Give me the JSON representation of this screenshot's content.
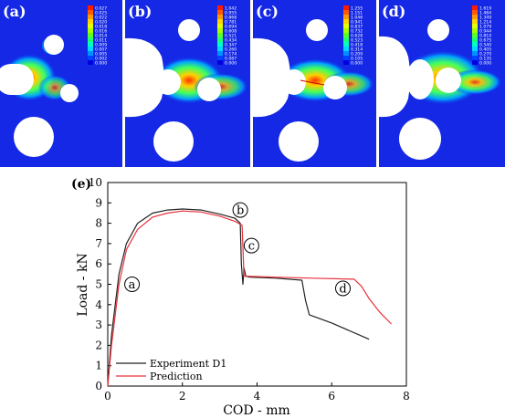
{
  "panels": [
    {
      "label": "(a)",
      "legend": [
        "0.027",
        "0.025",
        "0.022",
        "0.020",
        "0.018",
        "0.016",
        "0.014",
        "0.011",
        "0.009",
        "0.007",
        "0.005",
        "0.002",
        "0.000"
      ]
    },
    {
      "label": "(b)",
      "legend": [
        "1.042",
        "0.955",
        "0.868",
        "0.781",
        "0.694",
        "0.608",
        "0.521",
        "0.434",
        "0.347",
        "0.260",
        "0.174",
        "0.087",
        "0.000"
      ]
    },
    {
      "label": "(c)",
      "legend": [
        "1.255",
        "1.151",
        "1.046",
        "0.941",
        "0.837",
        "0.732",
        "0.628",
        "0.523",
        "0.418",
        "0.314",
        "0.209",
        "0.105",
        "0.000"
      ]
    },
    {
      "label": "(d)",
      "legend": [
        "1.619",
        "1.484",
        "1.349",
        "1.214",
        "1.079",
        "0.944",
        "0.810",
        "0.675",
        "0.540",
        "0.405",
        "0.270",
        "0.135",
        "0.000"
      ]
    }
  ],
  "legend_colors": [
    "#ff1a00",
    "#ff5a00",
    "#ff9a00",
    "#ffd500",
    "#e8ff00",
    "#a8ff00",
    "#5cff20",
    "#20ff70",
    "#00ffc0",
    "#00d8ff",
    "#0090ff",
    "#0044ff",
    "#0000e0"
  ],
  "colors": {
    "experiment": "#222222",
    "prediction": "#e8303a",
    "background_blue": "#1428e6"
  },
  "chart_data": {
    "panel_label": "(e)",
    "type": "line",
    "xlabel": "COD - mm",
    "ylabel": "Load - kN",
    "xlim": [
      0,
      8
    ],
    "ylim": [
      0,
      10
    ],
    "xticks": [
      "0",
      "2",
      "4",
      "6",
      "8"
    ],
    "yticks": [
      "0",
      "1",
      "2",
      "3",
      "4",
      "5",
      "6",
      "7",
      "8",
      "9",
      "10"
    ],
    "legend_location": "bottom-left",
    "series": [
      {
        "name": "Experiment D1",
        "x": [
          0,
          0.1,
          0.3,
          0.5,
          0.8,
          1.2,
          1.6,
          2.0,
          2.5,
          3.0,
          3.4,
          3.55,
          3.58,
          3.62,
          3.65,
          3.7,
          3.8,
          4.5,
          5.2,
          5.3,
          5.4,
          6.0,
          7.0
        ],
        "y": [
          0,
          2.5,
          5.5,
          7.0,
          8.0,
          8.5,
          8.65,
          8.7,
          8.65,
          8.45,
          8.25,
          8.0,
          6.0,
          5.0,
          5.8,
          5.4,
          5.35,
          5.3,
          5.2,
          4.2,
          3.5,
          3.1,
          2.3
        ]
      },
      {
        "name": "Prediction",
        "x": [
          0,
          0.1,
          0.3,
          0.5,
          0.8,
          1.2,
          1.6,
          2.0,
          2.5,
          3.0,
          3.4,
          3.6,
          3.65,
          3.7,
          4.5,
          5.5,
          6.6,
          6.8,
          7.0,
          7.3,
          7.6
        ],
        "y": [
          0,
          2.0,
          5.0,
          6.7,
          7.7,
          8.3,
          8.5,
          8.6,
          8.55,
          8.35,
          8.1,
          7.9,
          5.4,
          5.4,
          5.35,
          5.3,
          5.25,
          4.9,
          4.3,
          3.6,
          3.05
        ]
      }
    ],
    "annotations": [
      {
        "label": "a",
        "x": 0.65,
        "y": 5.0
      },
      {
        "label": "b",
        "x": 3.55,
        "y": 8.65
      },
      {
        "label": "c",
        "x": 3.85,
        "y": 6.9
      },
      {
        "label": "d",
        "x": 6.3,
        "y": 4.8
      }
    ]
  }
}
